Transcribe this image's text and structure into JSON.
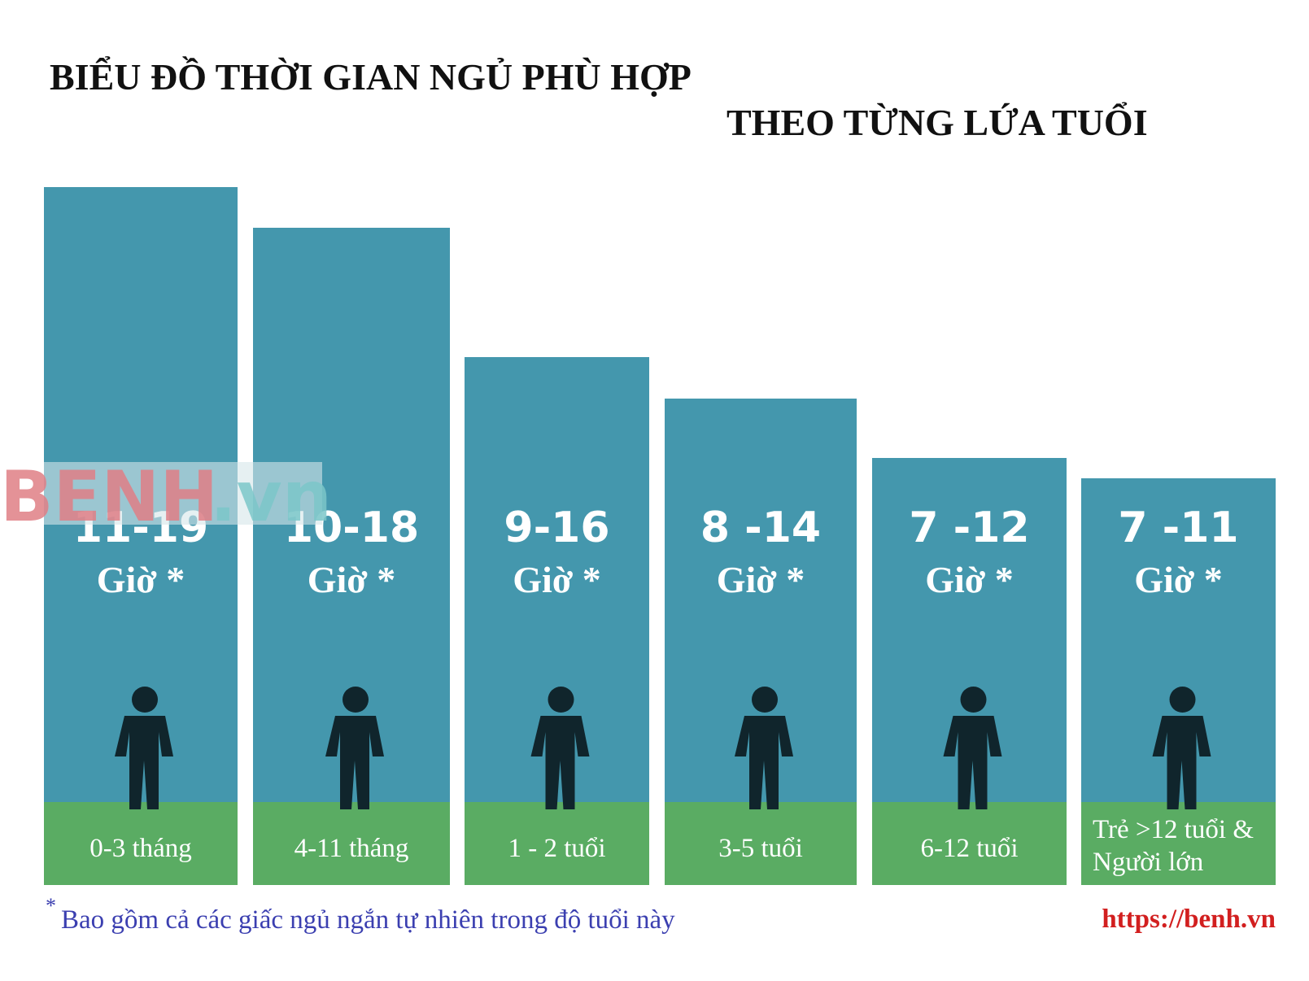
{
  "header": {
    "title_line1": "BIỂU ĐỒ THỜI GIAN NGỦ PHÙ HỢP",
    "title_line2": "THEO TỪNG LỨA TUỔI"
  },
  "columns": [
    {
      "hours": "11-19",
      "unit": "Giờ *",
      "age": "0-3 tháng"
    },
    {
      "hours": "10-18",
      "unit": "Giờ *",
      "age": "4-11 tháng"
    },
    {
      "hours": "9-16",
      "unit": "Giờ *",
      "age": "1 - 2 tuổi"
    },
    {
      "hours": "8 -14",
      "unit": "Giờ *",
      "age": "3-5 tuổi"
    },
    {
      "hours": "7 -12",
      "unit": "Giờ *",
      "age": "6-12 tuổi"
    },
    {
      "hours": "7 -11",
      "unit": "Giờ *",
      "age": [
        "Trẻ >12 tuổi &",
        "Người lớn"
      ]
    }
  ],
  "footer": {
    "asterisk": "*",
    "note": "Bao gồm cả các giấc ngủ ngắn tự nhiên trong độ tuổi này",
    "url": "https://benh.vn"
  },
  "watermark": {
    "brand": "BENH",
    "suffix": ".vn"
  }
}
